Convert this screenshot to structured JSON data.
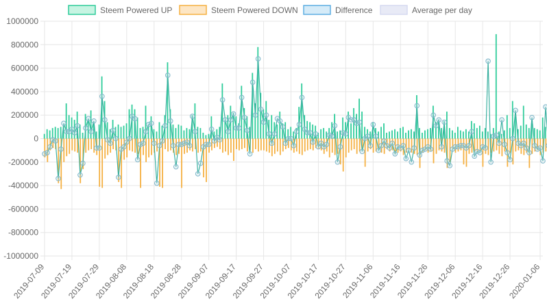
{
  "chart_data": {
    "type": "bar",
    "legend": {
      "placement": "top",
      "entries": [
        {
          "name": "Steem Powered UP",
          "fill": "#c6f4e2",
          "stroke": "#2ecc9a"
        },
        {
          "name": "Steem Powered DOWN",
          "fill": "#fde6c4",
          "stroke": "#f5b041"
        },
        {
          "name": "Difference",
          "fill": "#d5ebf8",
          "stroke": "#5dade2"
        },
        {
          "name": "Average per day",
          "fill": "#e8eaf6",
          "stroke": "#d6daf0"
        }
      ]
    },
    "colors": {
      "up": "#2ecc9a",
      "down": "#f5b041",
      "difference_line": "#3ab0a0",
      "difference_point": "#7fb6c9"
    },
    "grid": true,
    "ylim": [
      -1000000,
      1000000
    ],
    "yticks": [
      "1000000",
      "800000",
      "600000",
      "400000",
      "200000",
      "0",
      "-200000",
      "-400000",
      "-600000",
      "-800000",
      "-1000000"
    ],
    "xtick_labels": [
      "2019-07-09",
      "2019-07-19",
      "2019-07-29",
      "2019-08-08",
      "2019-08-18",
      "2019-08-28",
      "2019-09-07",
      "2019-09-17",
      "2019-09-27",
      "2019-10-07",
      "2019-10-17",
      "2019-10-27",
      "2019-11-06",
      "2019-11-16",
      "2019-11-26",
      "2019-12-06",
      "2019-12-16",
      "2019-12-26",
      "2020-01-06"
    ],
    "x_start": "2019-07-09",
    "x_end": "2020-01-07",
    "series": [
      {
        "name": "Steem Powered UP",
        "values": [
          40000,
          80000,
          70000,
          90000,
          100000,
          90000,
          100000,
          110000,
          300000,
          200000,
          180000,
          160000,
          230000,
          120000,
          50000,
          210000,
          160000,
          240000,
          140000,
          60000,
          120000,
          530000,
          320000,
          140000,
          80000,
          160000,
          100000,
          120000,
          100000,
          110000,
          130000,
          250000,
          290000,
          250000,
          180000,
          90000,
          100000,
          280000,
          120000,
          190000,
          80000,
          60000,
          140000,
          110000,
          200000,
          650000,
          250000,
          120000,
          90000,
          120000,
          110000,
          70000,
          90000,
          80000,
          200000,
          300000,
          100000,
          90000,
          50000,
          30000,
          40000,
          190000,
          60000,
          80000,
          100000,
          470000,
          160000,
          200000,
          280000,
          220000,
          190000,
          130000,
          450000,
          260000,
          190000,
          100000,
          560000,
          300000,
          780000,
          390000,
          250000,
          320000,
          160000,
          200000,
          140000,
          120000,
          230000,
          130000,
          140000,
          80000,
          100000,
          60000,
          90000,
          270000,
          470000,
          200000,
          150000,
          140000,
          120000,
          110000,
          50000,
          80000,
          90000,
          60000,
          90000,
          140000,
          210000,
          60000,
          70000,
          180000,
          140000,
          230000,
          130000,
          260000,
          210000,
          340000,
          230000,
          100000,
          80000,
          60000,
          140000,
          90000,
          60000,
          100000,
          130000,
          50000,
          60000,
          70000,
          80000,
          60000,
          90000,
          100000,
          50000,
          70000,
          80000,
          60000,
          370000,
          90000,
          50000,
          70000,
          80000,
          90000,
          280000,
          140000,
          160000,
          90000,
          150000,
          230000,
          90000,
          70000,
          50000,
          100000,
          70000,
          60000,
          80000,
          60000,
          150000,
          130000,
          90000,
          110000,
          60000,
          90000,
          60000,
          40000,
          90000,
          890000,
          60000,
          40000,
          70000,
          200000,
          90000,
          320000,
          190000,
          80000,
          110000,
          280000,
          120000,
          90000,
          130000,
          90000,
          80000,
          70000,
          180000,
          100000,
          80000,
          90000,
          290000,
          120000,
          110000,
          90000,
          80000,
          60000,
          310000,
          50000,
          60000
        ]
      },
      {
        "name": "Steem Powered DOWN",
        "values": [
          -160000,
          -200000,
          -100000,
          -80000,
          -90000,
          -380000,
          -430000,
          -200000,
          -150000,
          -130000,
          -100000,
          -110000,
          -120000,
          -380000,
          -260000,
          -120000,
          -100000,
          -90000,
          -120000,
          -140000,
          -410000,
          -420000,
          -170000,
          -140000,
          -120000,
          -90000,
          -100000,
          -370000,
          -420000,
          -180000,
          -160000,
          -100000,
          -110000,
          -120000,
          -130000,
          -420000,
          -140000,
          -200000,
          -160000,
          -140000,
          -120000,
          -110000,
          -410000,
          -420000,
          -90000,
          -110000,
          -100000,
          -120000,
          -140000,
          -130000,
          -420000,
          -130000,
          -120000,
          -100000,
          -110000,
          -90000,
          -120000,
          -110000,
          -330000,
          -370000,
          -120000,
          -100000,
          -80000,
          -70000,
          -90000,
          -120000,
          -110000,
          -140000,
          -120000,
          -190000,
          -90000,
          -100000,
          -90000,
          -80000,
          -110000,
          -100000,
          -120000,
          -90000,
          -110000,
          -100000,
          -100000,
          -110000,
          -120000,
          -150000,
          -130000,
          -110000,
          -140000,
          -110000,
          -90000,
          -80000,
          -100000,
          -120000,
          -110000,
          -130000,
          -140000,
          -110000,
          -100000,
          -90000,
          -100000,
          -80000,
          -90000,
          -100000,
          -130000,
          -110000,
          -160000,
          -120000,
          -140000,
          -130000,
          -220000,
          -280000,
          -160000,
          -120000,
          -100000,
          -90000,
          -130000,
          -110000,
          -100000,
          -240000,
          -110000,
          -90000,
          -120000,
          -110000,
          -100000,
          -120000,
          -130000,
          -90000,
          -110000,
          -100000,
          -130000,
          -120000,
          -110000,
          -140000,
          -120000,
          -100000,
          -120000,
          -130000,
          -140000,
          -250000,
          -120000,
          -100000,
          -120000,
          -110000,
          -210000,
          -130000,
          -100000,
          -110000,
          -120000,
          -250000,
          -200000,
          -90000,
          -120000,
          -110000,
          -100000,
          -220000,
          -240000,
          -130000,
          -120000,
          -110000,
          -120000,
          -100000,
          -240000,
          -130000,
          -140000,
          -120000,
          -110000,
          -100000,
          -130000,
          -150000,
          -110000,
          -240000,
          -120000,
          -220000,
          -110000,
          -100000,
          -130000,
          -140000,
          -120000,
          -250000,
          -130000,
          -110000,
          -100000,
          -140000,
          -120000,
          -110000,
          -170000,
          -130000,
          -160000,
          -120000,
          -110000,
          -100000,
          -130000,
          -180000,
          -110000,
          -120000,
          -100000,
          -130000,
          -150000,
          -120000,
          -160000,
          -200000,
          -140000,
          -110000,
          -130000
        ]
      },
      {
        "name": "Difference",
        "values": [
          -130000,
          -120000,
          -70000,
          -10000,
          -20000,
          -340000,
          -90000,
          130000,
          60000,
          60000,
          80000,
          50000,
          110000,
          -310000,
          -210000,
          90000,
          170000,
          60000,
          150000,
          -80000,
          -80000,
          360000,
          160000,
          -10000,
          -40000,
          70000,
          0,
          -330000,
          -90000,
          -70000,
          -30000,
          0,
          190000,
          170000,
          -180000,
          -50000,
          -40000,
          60000,
          120000,
          130000,
          -40000,
          -380000,
          -60000,
          -20000,
          110000,
          540000,
          150000,
          -60000,
          -240000,
          -50000,
          -50000,
          -40000,
          -30000,
          -60000,
          190000,
          60000,
          -300000,
          -210000,
          -70000,
          -50000,
          -50000,
          80000,
          -20000,
          10000,
          -10000,
          330000,
          160000,
          60000,
          160000,
          210000,
          90000,
          90000,
          350000,
          180000,
          70000,
          -130000,
          480000,
          200000,
          680000,
          250000,
          140000,
          200000,
          40000,
          -40000,
          40000,
          170000,
          150000,
          100000,
          -40000,
          0,
          0,
          -60000,
          60000,
          120000,
          350000,
          80000,
          50000,
          50000,
          -30000,
          40000,
          -70000,
          -40000,
          -70000,
          -50000,
          30000,
          20000,
          110000,
          -200000,
          -70000,
          50000,
          40000,
          180000,
          160000,
          160000,
          130000,
          140000,
          -110000,
          0,
          20000,
          -60000,
          120000,
          20000,
          -100000,
          -60000,
          -20000,
          -60000,
          -80000,
          -40000,
          -130000,
          -70000,
          -80000,
          -60000,
          -170000,
          -100000,
          -200000,
          -80000,
          280000,
          -140000,
          -100000,
          -90000,
          -70000,
          -90000,
          200000,
          110000,
          160000,
          -70000,
          140000,
          -190000,
          -230000,
          -90000,
          -70000,
          -70000,
          -60000,
          -60000,
          -80000,
          -60000,
          60000,
          -150000,
          -110000,
          -120000,
          -70000,
          -80000,
          660000,
          -200000,
          20000,
          30000,
          -40000,
          160000,
          -50000,
          -120000,
          -180000,
          0,
          240000,
          -40000,
          -60000,
          -40000,
          -80000,
          -120000,
          180000,
          -60000,
          -90000,
          -80000,
          -190000,
          270000,
          -60000,
          -130000,
          -40000,
          -50000,
          -80000,
          170000,
          -60000,
          -130000
        ]
      }
    ]
  }
}
